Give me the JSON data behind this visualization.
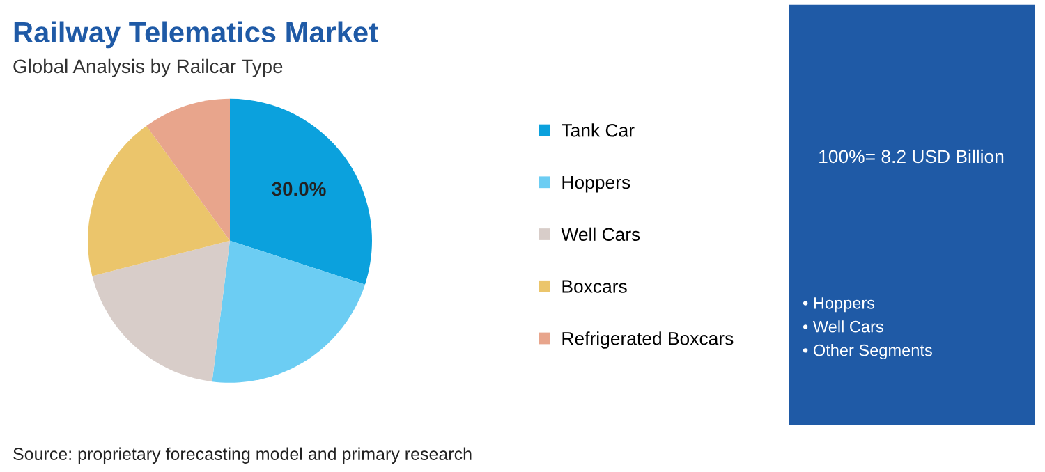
{
  "chart_data": {
    "type": "pie",
    "title": "Railway Telematics Market",
    "subtitle": "Global Analysis by Railcar Type",
    "categories": [
      "Tank Car",
      "Hoppers",
      "Well Cars",
      "Boxcars",
      "Refrigerated Boxcars"
    ],
    "values": [
      30,
      22,
      19,
      19,
      10
    ],
    "colors": [
      "#0ba1dd",
      "#6ccdf3",
      "#d8cdc9",
      "#ebc56b",
      "#e8a58c"
    ],
    "value_labels": [
      "30.0%",
      null,
      null,
      null,
      null
    ],
    "legend": "right",
    "annotations": [
      "Source: proprietary forecasting model and primary research",
      "100%= 8.2 USD Billion",
      "• Hoppers",
      "• Well Cars",
      "• Other Segments"
    ]
  }
}
